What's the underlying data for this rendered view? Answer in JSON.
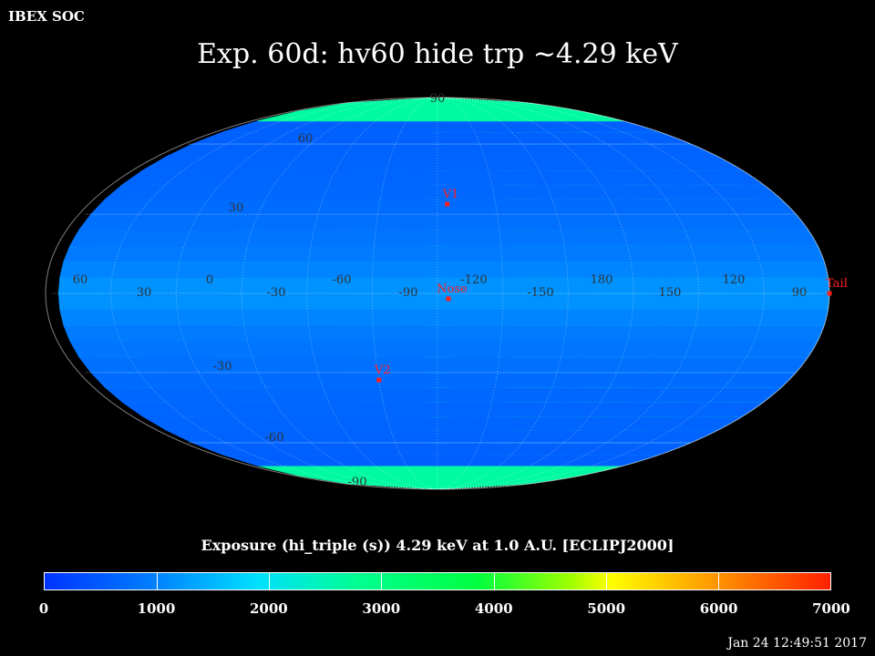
{
  "header": {
    "org": "IBEX SOC",
    "title": "Exp.   60d: hv60 hide trp ~4.29 keV"
  },
  "map": {
    "projection": "mollweide",
    "center_lon_deg": -100,
    "lon_labels": [
      "60",
      "30",
      "0",
      "-30",
      "-60",
      "-90",
      "-120",
      "-150",
      "180",
      "150",
      "120",
      "90"
    ],
    "lat_labels": [
      "90",
      "60",
      "30",
      "-30",
      "-60",
      "-90"
    ],
    "markers": [
      {
        "name": "V1",
        "label": "V1",
        "lon": -105,
        "lat": 34
      },
      {
        "name": "Nose",
        "label": "Nose",
        "lon": -105,
        "lat": -2
      },
      {
        "name": "V2",
        "label": "V2",
        "lon": -70,
        "lat": -33
      },
      {
        "name": "Tail",
        "label": "Tail",
        "lon": 80,
        "lat": 0
      }
    ],
    "marker_color": "#ff2020"
  },
  "colorbar": {
    "title": "Exposure (hi_triple (s))  4.29 keV at 1.0 A.U. [ECLIPJ2000]",
    "min": 0,
    "max": 7000,
    "tick_labels": [
      "0",
      "1000",
      "2000",
      "3000",
      "4000",
      "5000",
      "6000",
      "7000"
    ]
  },
  "footer": {
    "timestamp": "Jan 24 12:49:51 2017"
  }
}
